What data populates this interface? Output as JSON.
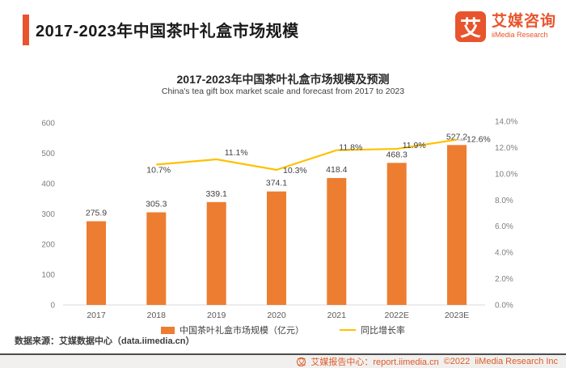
{
  "brand_color": "#E8542C",
  "header": {
    "title": "2017-2023年中国茶叶礼盒市场规模",
    "logo": {
      "mark": "艾",
      "name_cn": "艾媒咨询",
      "name_en": "iiMedia Research"
    }
  },
  "chart_data": {
    "type": "bar",
    "combo": "bar+line",
    "title": "2017-2023年中国茶叶礼盒市场规模及预测",
    "subtitle": "China's tea gift box market scale and forecast from 2017 to 2023",
    "categories": [
      "2017",
      "2018",
      "2019",
      "2020",
      "2021",
      "2022E",
      "2023E"
    ],
    "series": [
      {
        "name": "中国茶叶礼盒市场规模（亿元）",
        "type": "bar",
        "axis": "left",
        "color": "#ED7D31",
        "values": [
          275.9,
          305.3,
          339.1,
          374.1,
          418.4,
          468.3,
          527.2
        ]
      },
      {
        "name": "同比增长率",
        "type": "line",
        "axis": "right",
        "color": "#FFC000",
        "unit": "%",
        "values": [
          null,
          10.7,
          11.1,
          10.3,
          11.8,
          11.9,
          12.6
        ]
      }
    ],
    "left_axis": {
      "min": 0,
      "max": 600,
      "step": 100,
      "ticks": [
        "0",
        "100",
        "200",
        "300",
        "400",
        "500",
        "600"
      ]
    },
    "right_axis": {
      "min": 0,
      "max": 14,
      "step": 2,
      "ticks": [
        "0.0%",
        "2.0%",
        "4.0%",
        "6.0%",
        "8.0%",
        "10.0%",
        "12.0%",
        "14.0%"
      ]
    },
    "legend_position": "bottom",
    "grid": false
  },
  "source_note": "数据来源：艾媒数据中心（data.iimedia.cn）",
  "footer": {
    "icon": "艾",
    "report_center": "艾媒报告中心：report.iimedia.cn",
    "copyright": "©2022",
    "company": "iiMedia Research Inc"
  }
}
